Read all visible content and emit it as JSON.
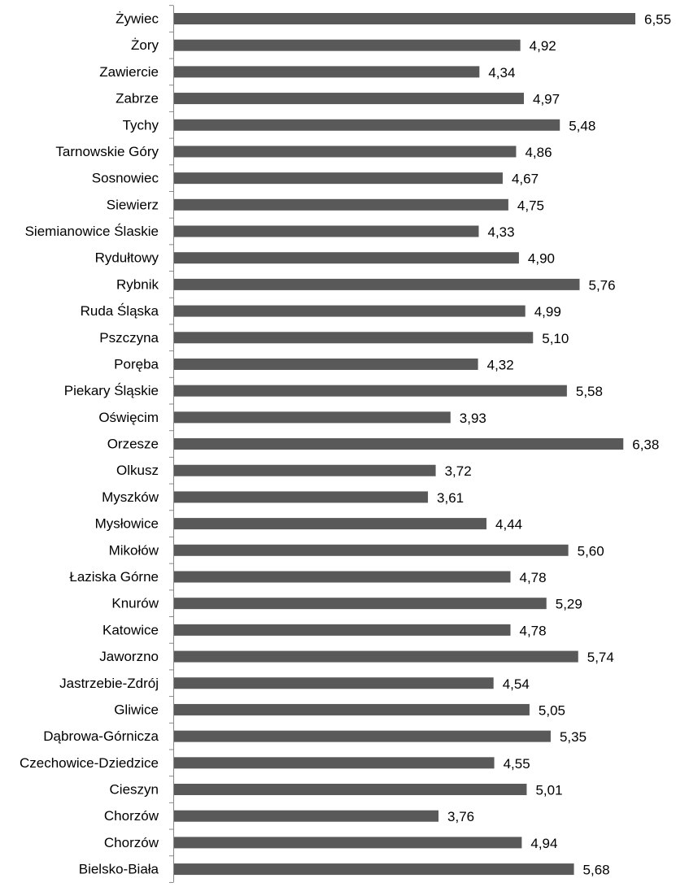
{
  "colors": {
    "bar": "#595959",
    "axis": "#868686",
    "text": "#000000"
  },
  "chart_data": {
    "type": "bar",
    "orientation": "horizontal",
    "categories": [
      "Żywiec",
      "Żory",
      "Zawiercie",
      "Zabrze",
      "Tychy",
      "Tarnowskie Góry",
      "Sosnowiec",
      "Siewierz",
      "Siemianowice Ślaskie",
      "Rydułtowy",
      "Rybnik",
      "Ruda Śląska",
      "Pszczyna",
      "Poręba",
      "Piekary Śląskie",
      "Oświęcim",
      "Orzesze",
      "Olkusz",
      "Myszków",
      "Mysłowice",
      "Mikołów",
      "Łaziska Górne",
      "Knurów",
      "Katowice",
      "Jaworzno",
      "Jastrzebie-Zdrój",
      "Gliwice",
      "Dąbrowa-Górnicza",
      "Czechowice-Dziedzice",
      "Cieszyn",
      "Chorzów",
      "Chorzów",
      "Bielsko-Biała"
    ],
    "values": [
      6.55,
      4.92,
      4.34,
      4.97,
      5.48,
      4.86,
      4.67,
      4.75,
      4.33,
      4.9,
      5.76,
      4.99,
      5.1,
      4.32,
      5.58,
      3.93,
      6.38,
      3.72,
      3.61,
      4.44,
      5.6,
      4.78,
      5.29,
      4.78,
      5.74,
      4.54,
      5.05,
      5.35,
      4.55,
      5.01,
      3.76,
      4.94,
      5.68
    ],
    "value_labels": [
      "6,55",
      "4,92",
      "4,34",
      "4,97",
      "5,48",
      "4,86",
      "4,67",
      "4,75",
      "4,33",
      "4,90",
      "5,76",
      "4,99",
      "5,10",
      "4,32",
      "5,58",
      "3,93",
      "6,38",
      "3,72",
      "3,61",
      "4,44",
      "5,60",
      "4,78",
      "5,29",
      "4,78",
      "5,74",
      "4,54",
      "5,05",
      "5,35",
      "4,55",
      "5,01",
      "3,76",
      "4,94",
      "5,68"
    ],
    "xlim": [
      0,
      6.55
    ],
    "title": "",
    "xlabel": "",
    "ylabel": "",
    "grid": false,
    "legend": "none"
  }
}
